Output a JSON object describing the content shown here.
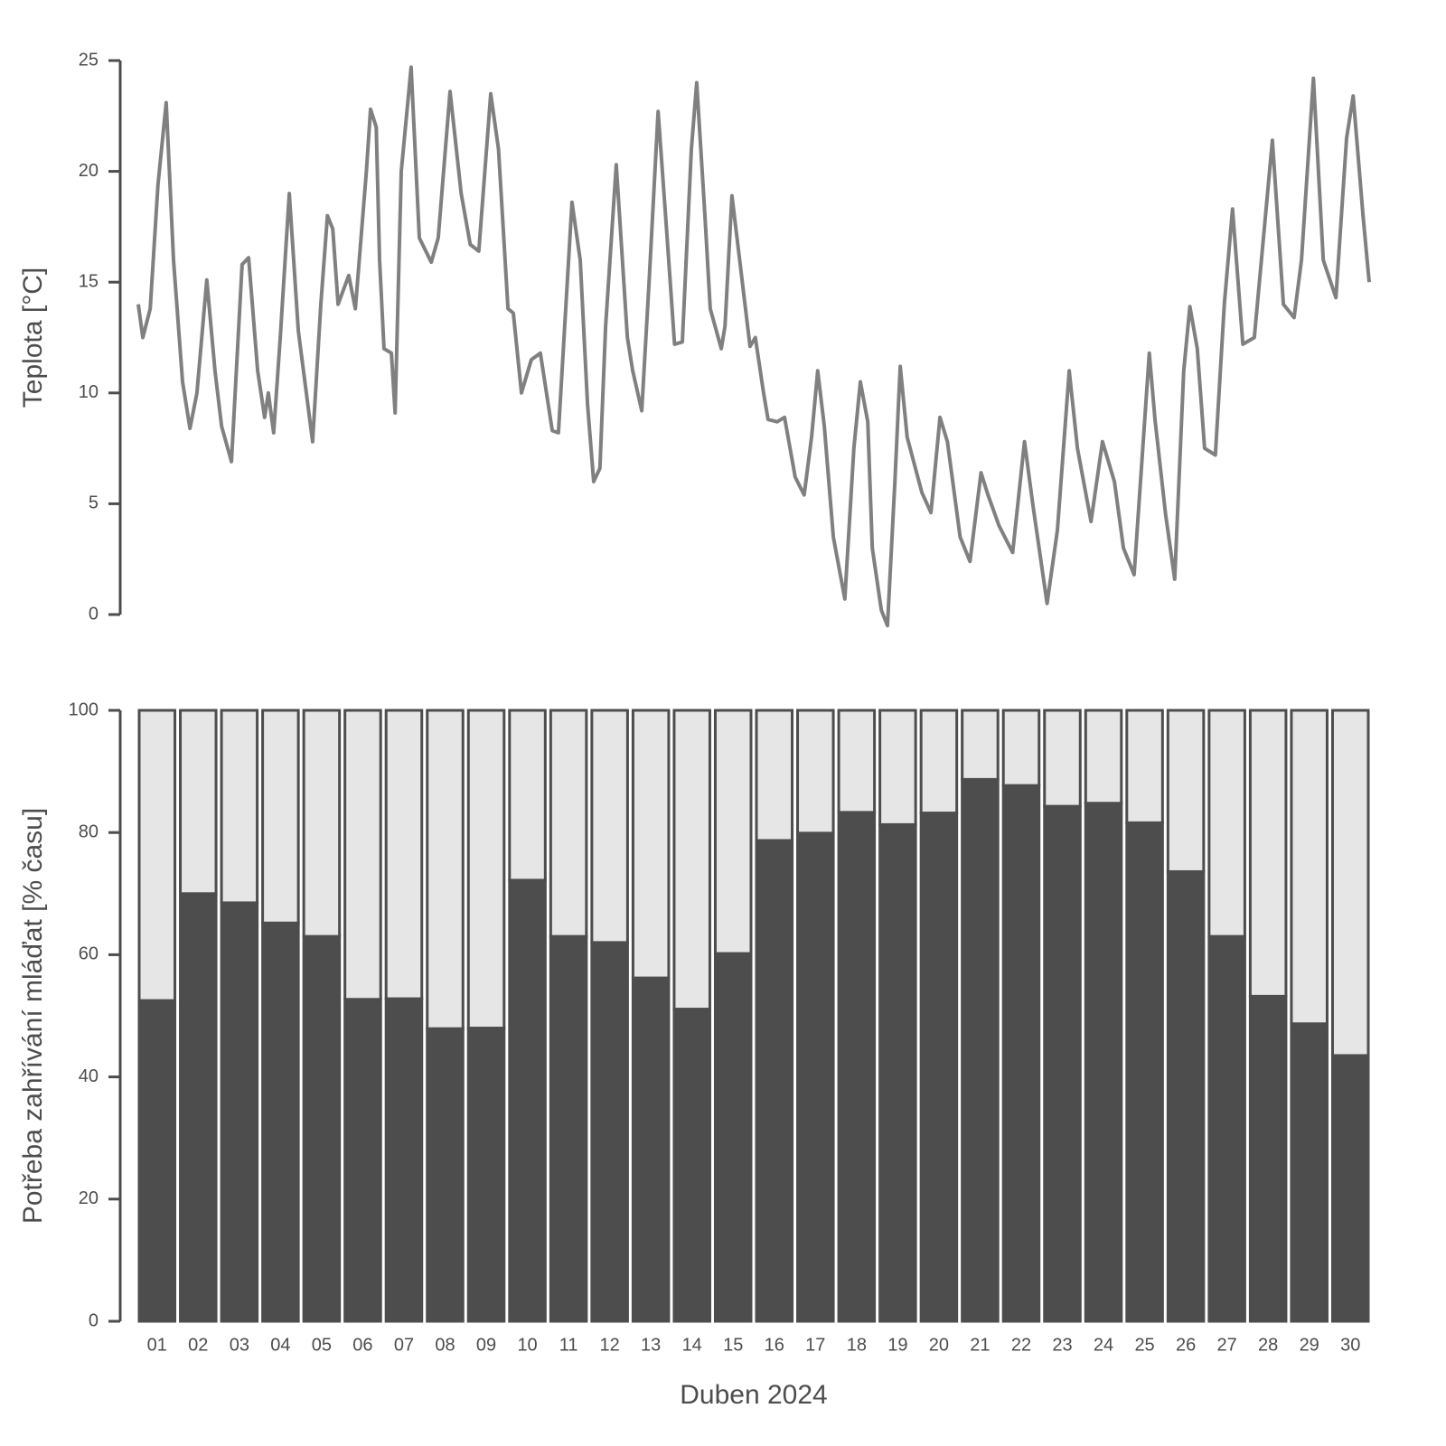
{
  "chart_data": [
    {
      "type": "line",
      "ylabel": "Teplota [°C]",
      "color": "#808080",
      "xlim": [
        1,
        31
      ],
      "ylim": [
        0,
        25
      ],
      "yticks": [
        0,
        5,
        10,
        15,
        20,
        25
      ],
      "x": [
        1.0,
        1.11,
        1.29,
        1.48,
        1.68,
        1.86,
        2.08,
        2.26,
        2.43,
        2.67,
        2.87,
        3.03,
        3.27,
        3.53,
        3.69,
        3.91,
        4.08,
        4.17,
        4.3,
        4.46,
        4.68,
        4.9,
        5.25,
        5.45,
        5.61,
        5.74,
        5.87,
        6.13,
        6.29,
        6.56,
        6.66,
        6.8,
        6.88,
        6.99,
        7.17,
        7.26,
        7.41,
        7.65,
        7.85,
        8.14,
        8.31,
        8.6,
        8.87,
        9.09,
        9.3,
        9.59,
        9.78,
        10.01,
        10.14,
        10.34,
        10.58,
        10.8,
        11.09,
        11.24,
        11.57,
        11.77,
        11.95,
        12.1,
        12.25,
        12.39,
        12.65,
        12.92,
        13.05,
        13.27,
        13.45,
        13.67,
        13.89,
        14.07,
        14.26,
        14.48,
        14.61,
        14.81,
        14.94,
        15.21,
        15.3,
        15.47,
        15.69,
        15.91,
        16.04,
        16.24,
        16.35,
        16.57,
        16.75,
        17.01,
        17.23,
        17.41,
        17.56,
        17.72,
        17.94,
        18.22,
        18.44,
        18.6,
        18.78,
        18.89,
        19.11,
        19.26,
        19.44,
        19.57,
        19.74,
        20.1,
        20.32,
        20.54,
        20.72,
        21.03,
        21.27,
        21.54,
        21.71,
        21.98,
        22.31,
        22.6,
        22.8,
        23.15,
        23.4,
        23.69,
        23.89,
        24.22,
        24.5,
        24.79,
        25.01,
        25.27,
        25.64,
        25.78,
        26.04,
        26.26,
        26.48,
        26.63,
        26.81,
        26.99,
        27.25,
        27.47,
        27.67,
        27.92,
        28.2,
        28.64,
        28.91,
        29.17,
        29.35,
        29.64,
        29.88,
        30.19,
        30.45,
        30.61,
        30.85,
        31.0
      ],
      "values": [
        14,
        12.5,
        13.8,
        19.4,
        23.1,
        16,
        10.5,
        8.4,
        10,
        15.1,
        11,
        8.5,
        6.9,
        15.8,
        16.1,
        11,
        8.9,
        10,
        8.2,
        12.5,
        19,
        12.8,
        7.8,
        14,
        18,
        17.4,
        14,
        15.3,
        13.8,
        20,
        22.8,
        22,
        16,
        12,
        11.8,
        9.1,
        20,
        24.7,
        17,
        15.9,
        17,
        23.6,
        19,
        16.7,
        16.4,
        23.5,
        21,
        13.8,
        13.6,
        10,
        11.5,
        11.8,
        8.3,
        8.2,
        18.6,
        16,
        9.5,
        6,
        6.6,
        13,
        20.3,
        12.5,
        11,
        9.2,
        15,
        22.7,
        17,
        12.2,
        12.3,
        21,
        24,
        18,
        13.8,
        12,
        13,
        18.9,
        15.5,
        12.1,
        12.5,
        10,
        8.8,
        8.7,
        8.9,
        6.2,
        5.4,
        8,
        11,
        8.5,
        3.5,
        0.7,
        7.5,
        10.5,
        8.7,
        3,
        0.2,
        -0.5,
        6,
        11.2,
        8,
        5.5,
        4.6,
        8.9,
        7.8,
        3.5,
        2.4,
        6.4,
        5.4,
        4,
        2.8,
        7.8,
        5,
        0.5,
        3.8,
        11,
        7.5,
        4.2,
        7.8,
        6,
        3,
        1.8,
        11.8,
        8.8,
        4.5,
        1.6,
        11,
        13.9,
        12,
        7.5,
        7.2,
        14,
        18.3,
        12.2,
        12.5,
        21.4,
        14,
        13.4,
        16,
        24.2,
        16,
        14.3,
        21.5,
        23.4,
        18,
        15
      ]
    },
    {
      "type": "bar",
      "stacked": true,
      "ylabel": "Potřeba zahřívání mláďat [% času]",
      "xlabel": "Duben 2024",
      "ylim": [
        0,
        100
      ],
      "yticks": [
        0,
        20,
        40,
        60,
        80,
        100
      ],
      "categories": [
        "01",
        "02",
        "03",
        "04",
        "05",
        "06",
        "07",
        "08",
        "09",
        "10",
        "11",
        "12",
        "13",
        "14",
        "15",
        "16",
        "17",
        "18",
        "19",
        "20",
        "21",
        "22",
        "23",
        "24",
        "25",
        "26",
        "27",
        "28",
        "29",
        "30"
      ],
      "series": [
        {
          "color": "#4d4d4d",
          "values": [
            52.5,
            70,
            68.5,
            65.2,
            63,
            52.7,
            52.8,
            47.9,
            48,
            72.2,
            63,
            62,
            56.2,
            51.1,
            60.2,
            78.7,
            79.9,
            83.3,
            81.3,
            83.2,
            88.7,
            87.7,
            84.3,
            84.8,
            81.6,
            73.6,
            63,
            53.2,
            48.7,
            43.5
          ]
        },
        {
          "color": "#e6e6e6",
          "values": [
            47.5,
            30,
            31.5,
            34.8,
            37,
            47.3,
            47.2,
            52.1,
            52,
            27.8,
            37,
            38,
            43.8,
            48.9,
            39.8,
            21.3,
            20.1,
            16.7,
            18.7,
            16.8,
            11.3,
            12.3,
            15.7,
            15.2,
            18.4,
            26.4,
            37,
            46.8,
            51.3,
            56.5
          ]
        }
      ]
    }
  ]
}
